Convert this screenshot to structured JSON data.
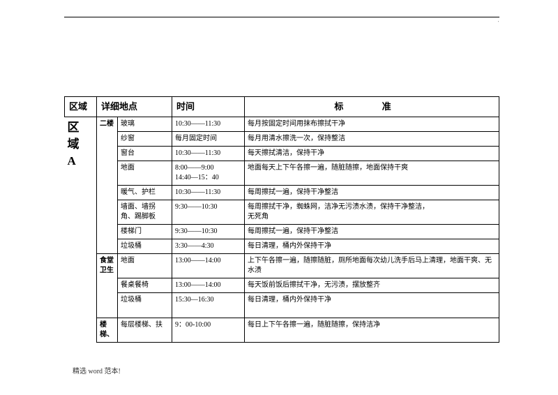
{
  "doc": {
    "corner_mark": "'",
    "footer": "精选 word 范本!"
  },
  "headers": {
    "zone": "区域",
    "detail": "详细地点",
    "time": "时间",
    "standard": "标        准"
  },
  "zone_label_lines": [
    "区",
    "域",
    "A"
  ],
  "groups": [
    {
      "sub": "二楼",
      "rows": [
        {
          "item": "玻璃",
          "time": "10:30——11:30",
          "std": "每月按固定时间用抹布擦拭干净"
        },
        {
          "item": "纱窗",
          "time": "每月固定时间",
          "std": "每月用清水擦洗一次，保持整洁"
        },
        {
          "item": "窗台",
          "time": "10:30——11:30",
          "std": "每天擦拭清洁，保持干净"
        },
        {
          "item": "地面",
          "time": "8:00——9:00\n14:40—15：40",
          "std": "地面每天上下午各擦一遍，随脏随擦，地面保持干爽"
        },
        {
          "item": "暖气、护栏",
          "time": "10:30——11:30",
          "std": "每周擦拭一遍，保持干净整洁"
        },
        {
          "item": "墙面、墙拐角、踢脚板",
          "time": "9:30——10:30",
          "std": "每周擦拭干净，蜘蛛网，洁净无污渍水渍，保持干净整洁，\n无死角"
        },
        {
          "item": "楼梯门",
          "time": "9:30——10:30",
          "std": "每周擦拭一遍，保持干净整洁"
        },
        {
          "item": "垃圾桶",
          "time": "3:30——4:30",
          "std": "每日清理，桶内外保持干净"
        }
      ]
    },
    {
      "sub": "食堂卫生",
      "rows": [
        {
          "item": "地面",
          "time": "13:00——14:00",
          "std": "上下午各擦一遍，随擦随脏，厕所地面每次幼儿洗手后马上清理，地面干爽、无水渍"
        },
        {
          "item": "餐桌餐椅",
          "time": "13:00——14:00",
          "std": "每天饭前饭后擦拭干净，无污渍，摆放整齐"
        },
        {
          "item": "垃圾桶",
          "time": "15:30—16:30",
          "std": "每日清理，桶内外保持干净",
          "tall": true
        }
      ]
    },
    {
      "sub": "楼梯、",
      "rows": [
        {
          "item": "每层楼梯、扶",
          "time": "9：00-10:00",
          "std": "每日上下午各擦一遍，随脏随擦，保持洁净"
        }
      ]
    }
  ]
}
